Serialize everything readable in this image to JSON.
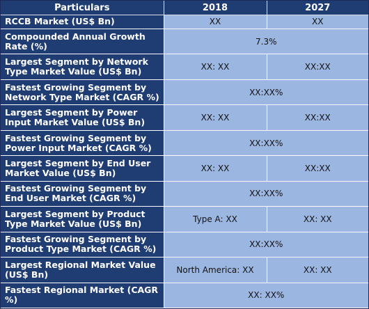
{
  "header": {
    "label": "Particulars",
    "year1": "2018",
    "year2": "2027"
  },
  "rows": [
    {
      "label": "RCCB Market (US$ Bn)",
      "v2018": "XX",
      "v2027": "XX"
    },
    {
      "label": "Compounded Annual Growth Rate (%)",
      "value": "7.3%"
    },
    {
      "label": "Largest Segment by Network Type Market Value (US$ Bn)",
      "v2018": "XX: XX",
      "v2027": "XX:XX"
    },
    {
      "label": "Fastest Growing Segment by Network Type Market (CAGR %)",
      "value": "XX:XX%"
    },
    {
      "label": "Largest Segment by Power Input Market Value (US$ Bn)",
      "v2018": "XX: XX",
      "v2027": "XX:XX"
    },
    {
      "label": "Fastest Growing Segment by Power Input Market (CAGR %)",
      "value": "XX:XX%"
    },
    {
      "label": "Largest Segment by End User Market Value (US$ Bn)",
      "v2018": "XX: XX",
      "v2027": "XX:XX"
    },
    {
      "label": "Fastest Growing Segment by End User Market (CAGR %)",
      "value": "XX:XX%"
    },
    {
      "label": "Largest Segment by Product Type Market Value (US$ Bn)",
      "v2018": "Type A: XX",
      "v2027": "XX: XX"
    },
    {
      "label": "Fastest Growing Segment by Product Type Market (CAGR %)",
      "value": "XX:XX%"
    },
    {
      "label": "Largest Regional Market Value (US$ Bn)",
      "v2018": "North America: XX",
      "v2027": "XX: XX"
    },
    {
      "label": "Fastest Regional Market (CAGR %)",
      "value": "XX: XX%"
    }
  ]
}
